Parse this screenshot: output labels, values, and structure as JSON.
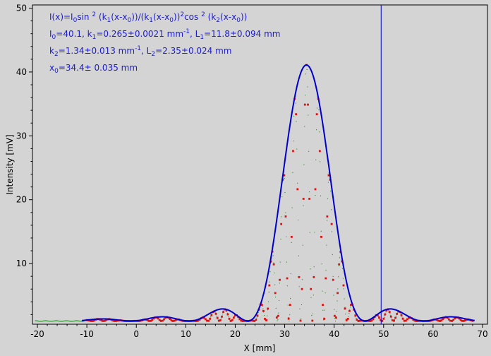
{
  "chart_data": {
    "type": "scatter",
    "xlabel": "X [mm]",
    "ylabel": "Intensity [mV]",
    "xlim": [
      -21,
      71
    ],
    "ylim": [
      0.5,
      50.5
    ],
    "xticks": [
      -20,
      -10,
      0,
      10,
      20,
      30,
      40,
      50,
      60,
      70
    ],
    "yticks": [
      10,
      20,
      30,
      40,
      50
    ],
    "grid": false,
    "cursor_x": 49.5,
    "annotation": {
      "line1": {
        "a": "I(x)=I",
        "b": "0",
        "c": "sin ",
        "d": "2",
        "e": " (k",
        "f": "1",
        "g": "(x-x",
        "h": "0",
        "i": "))/(k",
        "j": "1",
        "k": "(x-x",
        "l": "0",
        "m": "))",
        "n": "2",
        "o": "cos ",
        "p": "2",
        "q": " (k",
        "r": "2",
        "s": "(x-x",
        "t": "0",
        "u": "))"
      },
      "line2": {
        "a": "I",
        "b": "0",
        "c": "=40.1,  k",
        "d": "1",
        "e": "=0.265±0.0021 mm",
        "f": "-1",
        "g": ",   L",
        "h": "1",
        "i": "=11.8±0.094 mm"
      },
      "line3": {
        "a": "k",
        "b": "2",
        "c": "=1.34±0.013 mm",
        "d": "-1",
        "e": ",   L",
        "f": "2",
        "g": "=2.35±0.024 mm"
      },
      "line4": {
        "a": "x",
        "b": "0",
        "c": "=34.4±  0.035 mm"
      }
    },
    "fit": {
      "I0": 40.1,
      "k1": 0.265,
      "k2": 1.34,
      "x0": 34.4,
      "baseline": 1.0,
      "x_range": [
        -11,
        68.5
      ]
    },
    "series": [
      {
        "color": "#0000cc",
        "kind": "fit-line"
      },
      {
        "color": "#dd1111",
        "kind": "measured"
      },
      {
        "color": "#117711",
        "kind": "raw"
      }
    ]
  }
}
